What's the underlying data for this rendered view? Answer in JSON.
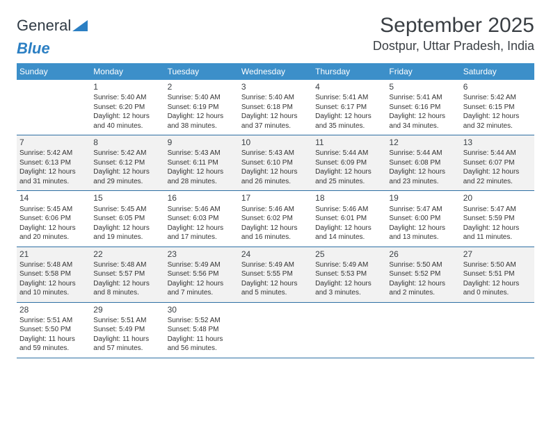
{
  "logo": {
    "text_general": "General",
    "text_blue": "Blue"
  },
  "header": {
    "month_title": "September 2025",
    "location": "Dostpur, Uttar Pradesh, India"
  },
  "colors": {
    "header_bg": "#3c8fc9",
    "header_text": "#ffffff",
    "row_border": "#2d6fa3",
    "shaded_bg": "#f2f2f2",
    "text": "#333333"
  },
  "days_of_week": [
    "Sunday",
    "Monday",
    "Tuesday",
    "Wednesday",
    "Thursday",
    "Friday",
    "Saturday"
  ],
  "weeks": [
    {
      "shaded": false,
      "cells": [
        {
          "num": "",
          "sunrise": "",
          "sunset": "",
          "daylight": ""
        },
        {
          "num": "1",
          "sunrise": "Sunrise: 5:40 AM",
          "sunset": "Sunset: 6:20 PM",
          "daylight": "Daylight: 12 hours and 40 minutes."
        },
        {
          "num": "2",
          "sunrise": "Sunrise: 5:40 AM",
          "sunset": "Sunset: 6:19 PM",
          "daylight": "Daylight: 12 hours and 38 minutes."
        },
        {
          "num": "3",
          "sunrise": "Sunrise: 5:40 AM",
          "sunset": "Sunset: 6:18 PM",
          "daylight": "Daylight: 12 hours and 37 minutes."
        },
        {
          "num": "4",
          "sunrise": "Sunrise: 5:41 AM",
          "sunset": "Sunset: 6:17 PM",
          "daylight": "Daylight: 12 hours and 35 minutes."
        },
        {
          "num": "5",
          "sunrise": "Sunrise: 5:41 AM",
          "sunset": "Sunset: 6:16 PM",
          "daylight": "Daylight: 12 hours and 34 minutes."
        },
        {
          "num": "6",
          "sunrise": "Sunrise: 5:42 AM",
          "sunset": "Sunset: 6:15 PM",
          "daylight": "Daylight: 12 hours and 32 minutes."
        }
      ]
    },
    {
      "shaded": true,
      "cells": [
        {
          "num": "7",
          "sunrise": "Sunrise: 5:42 AM",
          "sunset": "Sunset: 6:13 PM",
          "daylight": "Daylight: 12 hours and 31 minutes."
        },
        {
          "num": "8",
          "sunrise": "Sunrise: 5:42 AM",
          "sunset": "Sunset: 6:12 PM",
          "daylight": "Daylight: 12 hours and 29 minutes."
        },
        {
          "num": "9",
          "sunrise": "Sunrise: 5:43 AM",
          "sunset": "Sunset: 6:11 PM",
          "daylight": "Daylight: 12 hours and 28 minutes."
        },
        {
          "num": "10",
          "sunrise": "Sunrise: 5:43 AM",
          "sunset": "Sunset: 6:10 PM",
          "daylight": "Daylight: 12 hours and 26 minutes."
        },
        {
          "num": "11",
          "sunrise": "Sunrise: 5:44 AM",
          "sunset": "Sunset: 6:09 PM",
          "daylight": "Daylight: 12 hours and 25 minutes."
        },
        {
          "num": "12",
          "sunrise": "Sunrise: 5:44 AM",
          "sunset": "Sunset: 6:08 PM",
          "daylight": "Daylight: 12 hours and 23 minutes."
        },
        {
          "num": "13",
          "sunrise": "Sunrise: 5:44 AM",
          "sunset": "Sunset: 6:07 PM",
          "daylight": "Daylight: 12 hours and 22 minutes."
        }
      ]
    },
    {
      "shaded": false,
      "cells": [
        {
          "num": "14",
          "sunrise": "Sunrise: 5:45 AM",
          "sunset": "Sunset: 6:06 PM",
          "daylight": "Daylight: 12 hours and 20 minutes."
        },
        {
          "num": "15",
          "sunrise": "Sunrise: 5:45 AM",
          "sunset": "Sunset: 6:05 PM",
          "daylight": "Daylight: 12 hours and 19 minutes."
        },
        {
          "num": "16",
          "sunrise": "Sunrise: 5:46 AM",
          "sunset": "Sunset: 6:03 PM",
          "daylight": "Daylight: 12 hours and 17 minutes."
        },
        {
          "num": "17",
          "sunrise": "Sunrise: 5:46 AM",
          "sunset": "Sunset: 6:02 PM",
          "daylight": "Daylight: 12 hours and 16 minutes."
        },
        {
          "num": "18",
          "sunrise": "Sunrise: 5:46 AM",
          "sunset": "Sunset: 6:01 PM",
          "daylight": "Daylight: 12 hours and 14 minutes."
        },
        {
          "num": "19",
          "sunrise": "Sunrise: 5:47 AM",
          "sunset": "Sunset: 6:00 PM",
          "daylight": "Daylight: 12 hours and 13 minutes."
        },
        {
          "num": "20",
          "sunrise": "Sunrise: 5:47 AM",
          "sunset": "Sunset: 5:59 PM",
          "daylight": "Daylight: 12 hours and 11 minutes."
        }
      ]
    },
    {
      "shaded": true,
      "cells": [
        {
          "num": "21",
          "sunrise": "Sunrise: 5:48 AM",
          "sunset": "Sunset: 5:58 PM",
          "daylight": "Daylight: 12 hours and 10 minutes."
        },
        {
          "num": "22",
          "sunrise": "Sunrise: 5:48 AM",
          "sunset": "Sunset: 5:57 PM",
          "daylight": "Daylight: 12 hours and 8 minutes."
        },
        {
          "num": "23",
          "sunrise": "Sunrise: 5:49 AM",
          "sunset": "Sunset: 5:56 PM",
          "daylight": "Daylight: 12 hours and 7 minutes."
        },
        {
          "num": "24",
          "sunrise": "Sunrise: 5:49 AM",
          "sunset": "Sunset: 5:55 PM",
          "daylight": "Daylight: 12 hours and 5 minutes."
        },
        {
          "num": "25",
          "sunrise": "Sunrise: 5:49 AM",
          "sunset": "Sunset: 5:53 PM",
          "daylight": "Daylight: 12 hours and 3 minutes."
        },
        {
          "num": "26",
          "sunrise": "Sunrise: 5:50 AM",
          "sunset": "Sunset: 5:52 PM",
          "daylight": "Daylight: 12 hours and 2 minutes."
        },
        {
          "num": "27",
          "sunrise": "Sunrise: 5:50 AM",
          "sunset": "Sunset: 5:51 PM",
          "daylight": "Daylight: 12 hours and 0 minutes."
        }
      ]
    },
    {
      "shaded": false,
      "cells": [
        {
          "num": "28",
          "sunrise": "Sunrise: 5:51 AM",
          "sunset": "Sunset: 5:50 PM",
          "daylight": "Daylight: 11 hours and 59 minutes."
        },
        {
          "num": "29",
          "sunrise": "Sunrise: 5:51 AM",
          "sunset": "Sunset: 5:49 PM",
          "daylight": "Daylight: 11 hours and 57 minutes."
        },
        {
          "num": "30",
          "sunrise": "Sunrise: 5:52 AM",
          "sunset": "Sunset: 5:48 PM",
          "daylight": "Daylight: 11 hours and 56 minutes."
        },
        {
          "num": "",
          "sunrise": "",
          "sunset": "",
          "daylight": ""
        },
        {
          "num": "",
          "sunrise": "",
          "sunset": "",
          "daylight": ""
        },
        {
          "num": "",
          "sunrise": "",
          "sunset": "",
          "daylight": ""
        },
        {
          "num": "",
          "sunrise": "",
          "sunset": "",
          "daylight": ""
        }
      ]
    }
  ]
}
